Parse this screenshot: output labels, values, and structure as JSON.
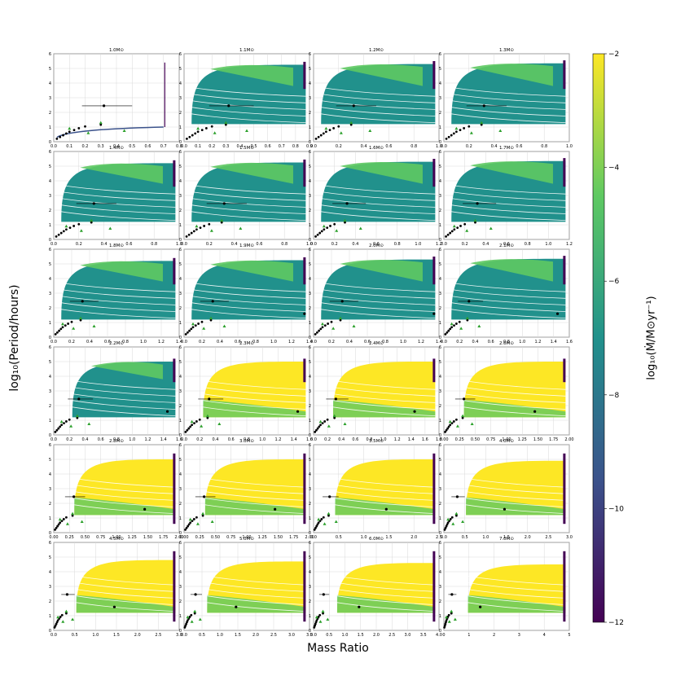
{
  "figure": {
    "ylabel": "log₁₀(Period/hours)",
    "xlabel": "Mass Ratio",
    "colorbar": {
      "label": "log₁₀(Ṁ/M⊙yr⁻¹)",
      "ticks": [
        "−12",
        "−10",
        "−8",
        "−6",
        "−4",
        "−2"
      ],
      "range": [
        -12,
        -2
      ],
      "colormap": [
        "#440154",
        "#3b528b",
        "#21918c",
        "#5ec962",
        "#fde725"
      ]
    },
    "colors": {
      "background": "#ffffff",
      "grid": "#d9d9d9",
      "points": "#000000",
      "triangles_green": "#2ca02c",
      "triangles_orange": "#ff9f1c"
    }
  },
  "chart_data": [
    {
      "type": "scatter",
      "title": "1.0M⊙",
      "xlim": [
        0,
        0.8
      ],
      "xticks": [
        "0.0",
        "0.1",
        "0.2",
        "0.3",
        "0.4",
        "0.5",
        "0.6",
        "0.7",
        "0.8"
      ],
      "ylim": [
        0,
        6
      ],
      "yticks": [
        "0",
        "1",
        "2",
        "3",
        "4",
        "5",
        "6"
      ]
    },
    {
      "type": "scatter",
      "title": "1.1M⊙",
      "xlim": [
        0,
        0.9
      ],
      "xticks": [
        "0.0",
        "0.1",
        "0.2",
        "0.3",
        "0.4",
        "0.5",
        "0.6",
        "0.7",
        "0.8",
        "0.9"
      ],
      "ylim": [
        0,
        6
      ],
      "yticks": [
        "0",
        "1",
        "2",
        "3",
        "4",
        "5",
        "6"
      ]
    },
    {
      "type": "scatter",
      "title": "1.2M⊙",
      "xlim": [
        0,
        1.0
      ],
      "xticks": [
        "0.0",
        "0.2",
        "0.4",
        "0.6",
        "0.8",
        "1.0"
      ],
      "ylim": [
        0,
        6
      ],
      "yticks": [
        "0",
        "1",
        "2",
        "3",
        "4",
        "5",
        "6"
      ]
    },
    {
      "type": "scatter",
      "title": "1.3M⊙",
      "xlim": [
        0,
        1.0
      ],
      "xticks": [
        "0.0",
        "0.2",
        "0.4",
        "0.6",
        "0.8",
        "1.0"
      ],
      "ylim": [
        0,
        6
      ],
      "yticks": [
        "0",
        "1",
        "2",
        "3",
        "4",
        "5",
        "6"
      ]
    },
    {
      "type": "scatter",
      "title": "1.4M⊙",
      "xlim": [
        0,
        1.0
      ],
      "xticks": [
        "0.0",
        "0.2",
        "0.4",
        "0.6",
        "0.8",
        "1.0"
      ],
      "ylim": [
        0,
        6
      ],
      "yticks": [
        "0",
        "1",
        "2",
        "3",
        "4",
        "5",
        "6"
      ]
    },
    {
      "type": "scatter",
      "title": "1.5M⊙",
      "xlim": [
        0,
        1.0
      ],
      "xticks": [
        "0.0",
        "0.2",
        "0.4",
        "0.6",
        "0.8",
        "1.0"
      ],
      "ylim": [
        0,
        6
      ],
      "yticks": [
        "0",
        "1",
        "2",
        "3",
        "4",
        "5",
        "6"
      ]
    },
    {
      "type": "scatter",
      "title": "1.6M⊙",
      "xlim": [
        0,
        1.2
      ],
      "xticks": [
        "0.0",
        "0.2",
        "0.4",
        "0.6",
        "0.8",
        "1.0",
        "1.2"
      ],
      "ylim": [
        0,
        6
      ],
      "yticks": [
        "0",
        "1",
        "2",
        "3",
        "4",
        "5",
        "6"
      ]
    },
    {
      "type": "scatter",
      "title": "1.7M⊙",
      "xlim": [
        0,
        1.2
      ],
      "xticks": [
        "0.0",
        "0.2",
        "0.4",
        "0.6",
        "0.8",
        "1.0",
        "1.2"
      ],
      "ylim": [
        0,
        6
      ],
      "yticks": [
        "0",
        "1",
        "2",
        "3",
        "4",
        "5",
        "6"
      ]
    },
    {
      "type": "scatter",
      "title": "1.8M⊙",
      "xlim": [
        0,
        1.4
      ],
      "xticks": [
        "0.0",
        "0.2",
        "0.4",
        "0.6",
        "0.8",
        "1.0",
        "1.2",
        "1.4"
      ],
      "ylim": [
        0,
        6
      ],
      "yticks": [
        "0",
        "1",
        "2",
        "3",
        "4",
        "5",
        "6"
      ]
    },
    {
      "type": "scatter",
      "title": "1.9M⊙",
      "xlim": [
        0,
        1.4
      ],
      "xticks": [
        "0.0",
        "0.2",
        "0.4",
        "0.6",
        "0.8",
        "1.0",
        "1.2",
        "1.4"
      ],
      "ylim": [
        0,
        6
      ],
      "yticks": [
        "0",
        "1",
        "2",
        "3",
        "4",
        "5",
        "6"
      ]
    },
    {
      "type": "scatter",
      "title": "2.0M⊙",
      "xlim": [
        0,
        1.4
      ],
      "xticks": [
        "0.0",
        "0.2",
        "0.4",
        "0.6",
        "0.8",
        "1.0",
        "1.2",
        "1.4"
      ],
      "ylim": [
        0,
        6
      ],
      "yticks": [
        "0",
        "1",
        "2",
        "3",
        "4",
        "5",
        "6"
      ]
    },
    {
      "type": "scatter",
      "title": "2.1M⊙",
      "xlim": [
        0,
        1.6
      ],
      "xticks": [
        "0.0",
        "0.2",
        "0.4",
        "0.6",
        "0.8",
        "1.0",
        "1.2",
        "1.4",
        "1.6"
      ],
      "ylim": [
        0,
        6
      ],
      "yticks": [
        "0",
        "1",
        "2",
        "3",
        "4",
        "5",
        "6"
      ]
    },
    {
      "type": "scatter",
      "title": "2.2M⊙",
      "xlim": [
        0,
        1.6
      ],
      "xticks": [
        "0.0",
        "0.2",
        "0.4",
        "0.6",
        "0.8",
        "1.0",
        "1.2",
        "1.4",
        "1.6"
      ],
      "ylim": [
        0,
        6
      ],
      "yticks": [
        "0",
        "1",
        "2",
        "3",
        "4",
        "5",
        "6"
      ]
    },
    {
      "type": "scatter",
      "title": "2.3M⊙",
      "xlim": [
        0,
        1.6
      ],
      "xticks": [
        "0.0",
        "0.2",
        "0.4",
        "0.6",
        "0.8",
        "1.0",
        "1.2",
        "1.4",
        "1.6"
      ],
      "ylim": [
        0,
        6
      ],
      "yticks": [
        "0",
        "1",
        "2",
        "3",
        "4",
        "5",
        "6"
      ]
    },
    {
      "type": "scatter",
      "title": "2.4M⊙",
      "xlim": [
        0,
        1.8
      ],
      "xticks": [
        "0.0",
        "0.2",
        "0.4",
        "0.6",
        "0.8",
        "1.0",
        "1.2",
        "1.4",
        "1.6",
        "1.8"
      ],
      "ylim": [
        0,
        6
      ],
      "yticks": [
        "0",
        "1",
        "2",
        "3",
        "4",
        "5",
        "6"
      ]
    },
    {
      "type": "scatter",
      "title": "2.6M⊙",
      "xlim": [
        0,
        2.0
      ],
      "xticks": [
        "0.00",
        "0.25",
        "0.50",
        "0.75",
        "1.00",
        "1.25",
        "1.50",
        "1.75",
        "2.00"
      ],
      "ylim": [
        0,
        6
      ],
      "yticks": [
        "0",
        "1",
        "2",
        "3",
        "4",
        "5",
        "6"
      ]
    },
    {
      "type": "scatter",
      "title": "2.8M⊙",
      "xlim": [
        0,
        2.0
      ],
      "xticks": [
        "0.00",
        "0.25",
        "0.50",
        "0.75",
        "1.00",
        "1.25",
        "1.50",
        "1.75",
        "2.00"
      ],
      "ylim": [
        0,
        6
      ],
      "yticks": [
        "0",
        "1",
        "2",
        "3",
        "4",
        "5",
        "6"
      ]
    },
    {
      "type": "scatter",
      "title": "3.0M⊙",
      "xlim": [
        0,
        2.0
      ],
      "xticks": [
        "0.00",
        "0.25",
        "0.50",
        "0.75",
        "1.00",
        "1.25",
        "1.50",
        "1.75",
        "2.00"
      ],
      "ylim": [
        0,
        6
      ],
      "yticks": [
        "0",
        "1",
        "2",
        "3",
        "4",
        "5",
        "6"
      ]
    },
    {
      "type": "scatter",
      "title": "3.5M⊙",
      "xlim": [
        0,
        2.5
      ],
      "xticks": [
        "0.0",
        "0.5",
        "1.0",
        "1.5",
        "2.0",
        "2.5"
      ],
      "ylim": [
        0,
        6
      ],
      "yticks": [
        "0",
        "1",
        "2",
        "3",
        "4",
        "5",
        "6"
      ]
    },
    {
      "type": "scatter",
      "title": "4.0M⊙",
      "xlim": [
        0,
        3.0
      ],
      "xticks": [
        "0.0",
        "0.5",
        "1.0",
        "1.5",
        "2.0",
        "2.5",
        "3.0"
      ],
      "ylim": [
        0,
        6
      ],
      "yticks": [
        "0",
        "1",
        "2",
        "3",
        "4",
        "5",
        "6"
      ]
    },
    {
      "type": "scatter",
      "title": "4.5M⊙",
      "xlim": [
        0,
        3.0
      ],
      "xticks": [
        "0.0",
        "0.5",
        "1.0",
        "1.5",
        "2.0",
        "2.5",
        "3.0"
      ],
      "ylim": [
        0,
        6
      ],
      "yticks": [
        "0",
        "1",
        "2",
        "3",
        "4",
        "5",
        "6"
      ]
    },
    {
      "type": "scatter",
      "title": "5.0M⊙",
      "xlim": [
        0,
        3.5
      ],
      "xticks": [
        "0.0",
        "0.5",
        "1.0",
        "1.5",
        "2.0",
        "2.5",
        "3.0",
        "3.5"
      ],
      "ylim": [
        0,
        6
      ],
      "yticks": [
        "0",
        "1",
        "2",
        "3",
        "4",
        "5",
        "6"
      ]
    },
    {
      "type": "scatter",
      "title": "6.0M⊙",
      "xlim": [
        0,
        4.0
      ],
      "xticks": [
        "0.0",
        "0.5",
        "1.0",
        "1.5",
        "2.0",
        "2.5",
        "3.0",
        "3.5",
        "4.0"
      ],
      "ylim": [
        0,
        6
      ],
      "yticks": [
        "0",
        "1",
        "2",
        "3",
        "4",
        "5",
        "6"
      ]
    },
    {
      "type": "scatter",
      "title": "7.0M⊙",
      "xlim": [
        0,
        5.0
      ],
      "xticks": [
        "0",
        "1",
        "2",
        "3",
        "4",
        "5"
      ],
      "ylim": [
        0,
        6
      ],
      "yticks": [
        "0",
        "1",
        "2",
        "3",
        "4",
        "5",
        "6"
      ]
    }
  ]
}
